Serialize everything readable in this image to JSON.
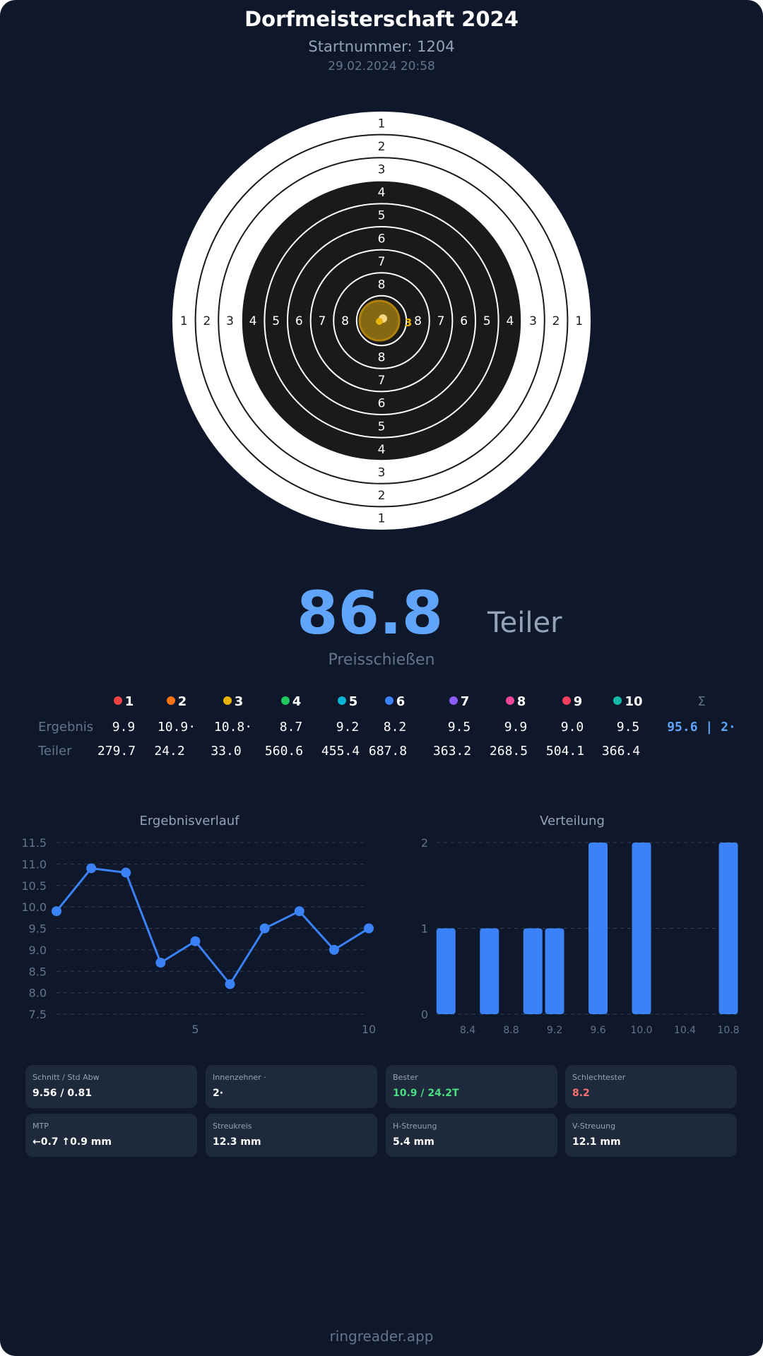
{
  "header": {
    "title": "Dorfmeisterschaft 2024",
    "start_number": "Startnummer: 1204",
    "datetime": "29.02.2024 20:58"
  },
  "target": {
    "ring_labels": [
      "1",
      "2",
      "3",
      "4",
      "5",
      "6",
      "7",
      "8"
    ],
    "shot_label": "3",
    "colors": {
      "white_zone": "#ffffff",
      "black_zone": "#1a1a1a",
      "shot_fill": "#8a6d14",
      "shot_label": "#eab308"
    }
  },
  "result": {
    "value": "86.8",
    "unit": "Teiler",
    "mode": "Preisschießen"
  },
  "shots_table": {
    "headers": [
      {
        "label": "1",
        "color": "#ef4444"
      },
      {
        "label": "2",
        "color": "#f97316"
      },
      {
        "label": "3",
        "color": "#eab308"
      },
      {
        "label": "4",
        "color": "#22c55e"
      },
      {
        "label": "5",
        "color": "#06b6d4"
      },
      {
        "label": "6",
        "color": "#3b82f6"
      },
      {
        "label": "7",
        "color": "#8b5cf6"
      },
      {
        "label": "8",
        "color": "#ec4899"
      },
      {
        "label": "9",
        "color": "#f43f5e"
      },
      {
        "label": "10",
        "color": "#14b8a6"
      }
    ],
    "sum_header": "Σ",
    "row_labels": {
      "result": "Ergebnis",
      "teiler": "Teiler"
    },
    "results": [
      "9.9",
      "10.9·",
      "10.8·",
      "8.7",
      "9.2",
      "8.2",
      "9.5",
      "9.9",
      "9.0",
      "9.5"
    ],
    "result_sum": "95.6 | 2·",
    "teiler": [
      "279.7",
      "24.2",
      "33.0",
      "560.6",
      "455.4",
      "687.8",
      "363.2",
      "268.5",
      "504.1",
      "366.4"
    ]
  },
  "chart_data": [
    {
      "type": "line",
      "title": "Ergebnisverlauf",
      "x": [
        1,
        2,
        3,
        4,
        5,
        6,
        7,
        8,
        9,
        10
      ],
      "values": [
        9.9,
        10.9,
        10.8,
        8.7,
        9.2,
        8.2,
        9.5,
        9.9,
        9.0,
        9.5
      ],
      "ylim": [
        7.5,
        11.5
      ],
      "yticks": [
        "11.5",
        "11.0",
        "10.5",
        "10.0",
        "9.5",
        "9.0",
        "8.5",
        "8.0",
        "7.5"
      ],
      "xticks": [
        "5",
        "10"
      ],
      "grid": true,
      "color": "#3b82f6"
    },
    {
      "type": "bar",
      "title": "Verteilung",
      "bins": [
        8.2,
        8.6,
        9.0,
        9.2,
        9.6,
        10.0,
        10.8
      ],
      "values": [
        1,
        1,
        1,
        1,
        2,
        2,
        2
      ],
      "ylim": [
        0,
        2
      ],
      "yticks": [
        "2",
        "1",
        "0"
      ],
      "xticks": [
        "8.4",
        "8.8",
        "9.2",
        "9.6",
        "10.0",
        "10.4",
        "10.8"
      ],
      "grid": true,
      "color": "#3b82f6"
    }
  ],
  "stats": [
    {
      "label": "Schnitt / Std Abw",
      "value": "9.56 / 0.81",
      "color": "#ffffff"
    },
    {
      "label": "Innenzehner ·",
      "value": "2·",
      "color": "#ffffff"
    },
    {
      "label": "Bester",
      "value": "10.9 / 24.2T",
      "color": "#4ade80"
    },
    {
      "label": "Schlechtester",
      "value": "8.2",
      "color": "#f87171"
    },
    {
      "label": "MTP",
      "value": "←0.7 ↑0.9 mm",
      "color": "#ffffff"
    },
    {
      "label": "Streukreis",
      "value": "12.3 mm",
      "color": "#ffffff"
    },
    {
      "label": "H-Streuung",
      "value": "5.4 mm",
      "color": "#ffffff"
    },
    {
      "label": "V-Streuung",
      "value": "12.1 mm",
      "color": "#ffffff"
    }
  ],
  "footer": "ringreader.app"
}
